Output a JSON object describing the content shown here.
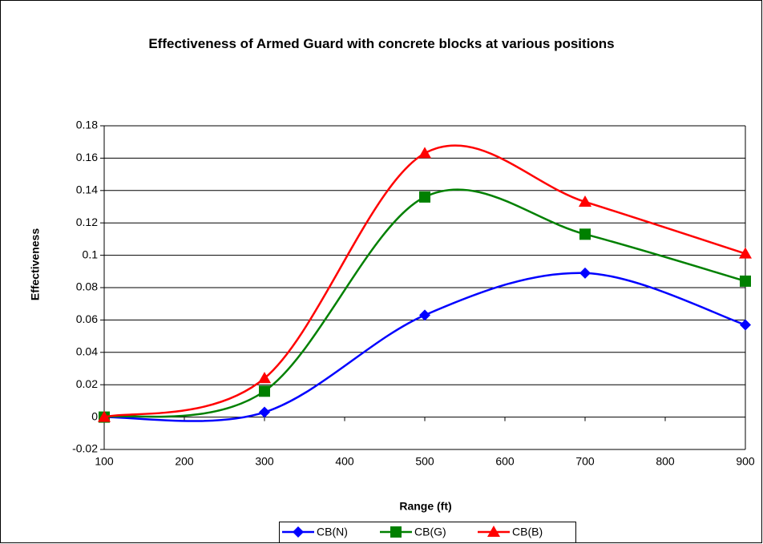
{
  "chart_data": {
    "type": "line",
    "title": "Effectiveness of Armed Guard with concrete blocks at various positions",
    "xlabel": "Range (ft)",
    "ylabel": "Effectiveness",
    "x": [
      100,
      300,
      500,
      700,
      900
    ],
    "series": [
      {
        "name": "CB(N)",
        "color": "#0000ff",
        "marker": "diamond",
        "values": [
          0,
          0.003,
          0.063,
          0.089,
          0.057
        ]
      },
      {
        "name": "CB(G)",
        "color": "#008000",
        "marker": "square",
        "values": [
          0,
          0.016,
          0.136,
          0.113,
          0.084
        ]
      },
      {
        "name": "CB(B)",
        "color": "#ff0000",
        "marker": "triangle",
        "values": [
          0,
          0.024,
          0.163,
          0.133,
          0.101
        ]
      }
    ],
    "xlim": [
      100,
      900
    ],
    "xticks": [
      100,
      200,
      300,
      400,
      500,
      600,
      700,
      800,
      900
    ],
    "ylim": [
      -0.02,
      0.18
    ],
    "yticks": [
      -0.02,
      0,
      0.02,
      0.04,
      0.06,
      0.08,
      0.1,
      0.12,
      0.14,
      0.16,
      0.18
    ],
    "grid": true,
    "smooth": true,
    "legend": "bottom"
  }
}
